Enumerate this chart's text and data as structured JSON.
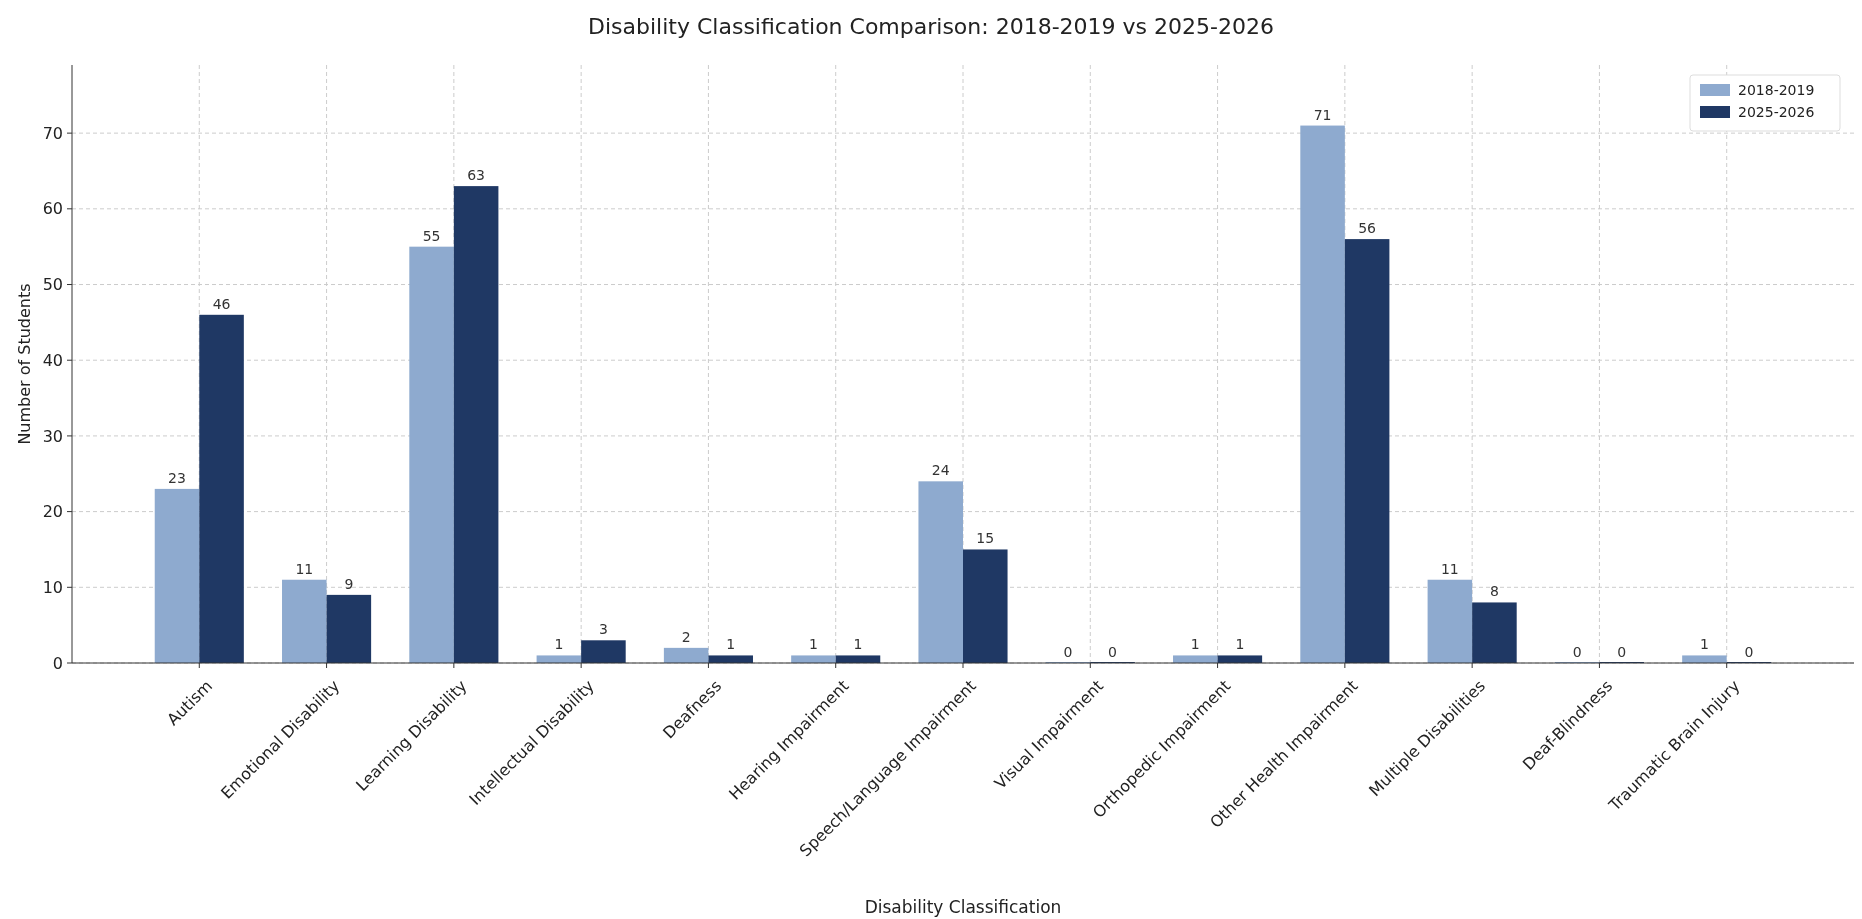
{
  "chart_data": {
    "type": "bar",
    "title": "Disability Classification Comparison: 2018-2019 vs 2025-2026",
    "xlabel": "Disability Classification",
    "ylabel": "Number of Students",
    "categories": [
      "Autism",
      "Emotional Disability",
      "Learning Disability",
      "Intellectual Disability",
      "Deafness",
      "Hearing Impairment",
      "Speech/Language Impairment",
      "Visual Impairment",
      "Orthopedic Impairment",
      "Other Health Impairment",
      "Multiple Disabilities",
      "Deaf-Blindness",
      "Traumatic Brain Injury"
    ],
    "series": [
      {
        "name": "2018-2019",
        "color": "#8eaacf",
        "values": [
          23,
          11,
          55,
          1,
          2,
          1,
          24,
          0,
          1,
          71,
          11,
          0,
          1
        ]
      },
      {
        "name": "2025-2026",
        "color": "#1f3864",
        "values": [
          46,
          9,
          63,
          3,
          1,
          1,
          15,
          0,
          1,
          56,
          8,
          0,
          0
        ]
      }
    ],
    "ylim": [
      0,
      79
    ],
    "yticks": [
      0,
      10,
      20,
      30,
      40,
      50,
      60,
      70
    ],
    "grid": true,
    "legend": "top right",
    "data_labels": true
  }
}
